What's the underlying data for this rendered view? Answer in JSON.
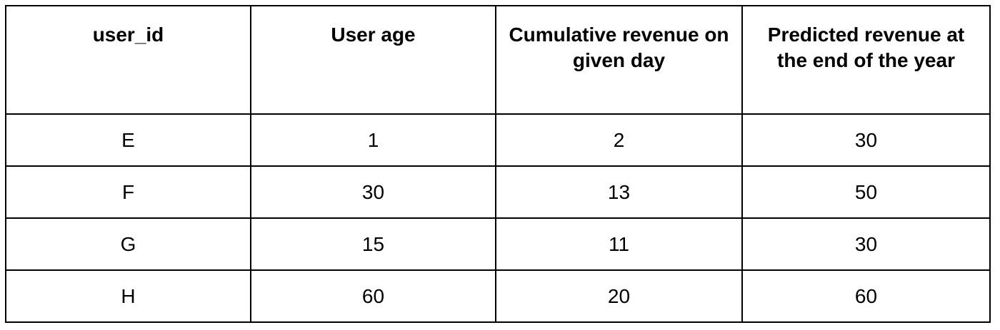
{
  "table": {
    "headers": [
      "user_id",
      "User age",
      "Cumulative revenue on given day",
      "Predicted revenue at the end of the year"
    ],
    "rows": [
      [
        "E",
        "1",
        "2",
        "30"
      ],
      [
        "F",
        "30",
        "13",
        "50"
      ],
      [
        "G",
        "15",
        "11",
        "30"
      ],
      [
        "H",
        "60",
        "20",
        "60"
      ]
    ]
  }
}
